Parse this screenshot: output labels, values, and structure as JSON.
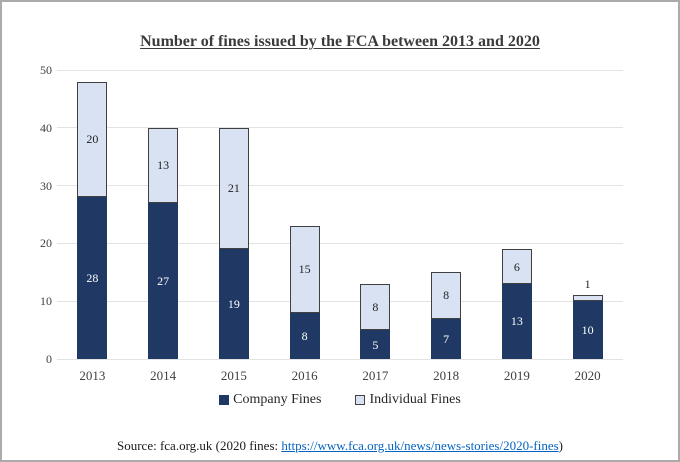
{
  "title": "Number of fines issued by the FCA between 2013 and 2020",
  "chart_data": {
    "type": "bar",
    "stacked": true,
    "title": "Number of fines issued by the FCA between 2013 and 2020",
    "categories": [
      "2013",
      "2014",
      "2015",
      "2016",
      "2017",
      "2018",
      "2019",
      "2020"
    ],
    "series": [
      {
        "name": "Company Fines",
        "color": "#1f3864",
        "border_color": "#1f3864",
        "label_color": "#ffffff",
        "values": [
          28,
          27,
          19,
          8,
          5,
          7,
          13,
          10
        ]
      },
      {
        "name": "Individual Fines",
        "color": "#d9e2f3",
        "border_color": "#404040",
        "label_color": "#1f1f1f",
        "values": [
          20,
          13,
          21,
          15,
          8,
          8,
          6,
          1
        ]
      }
    ],
    "totals": [
      48,
      40,
      40,
      23,
      13,
      15,
      19,
      11
    ],
    "ylim": [
      0,
      50
    ],
    "yticks": [
      0,
      10,
      20,
      30,
      40,
      50
    ],
    "grid": true,
    "gridline_color": "#e3e3e3",
    "legend_position": "bottom"
  },
  "source": {
    "prefix": "Source: fca.org.uk (2020 fines: ",
    "link": "https://www.fca.org.uk/news/news-stories/2020-fines",
    "suffix": ")"
  }
}
